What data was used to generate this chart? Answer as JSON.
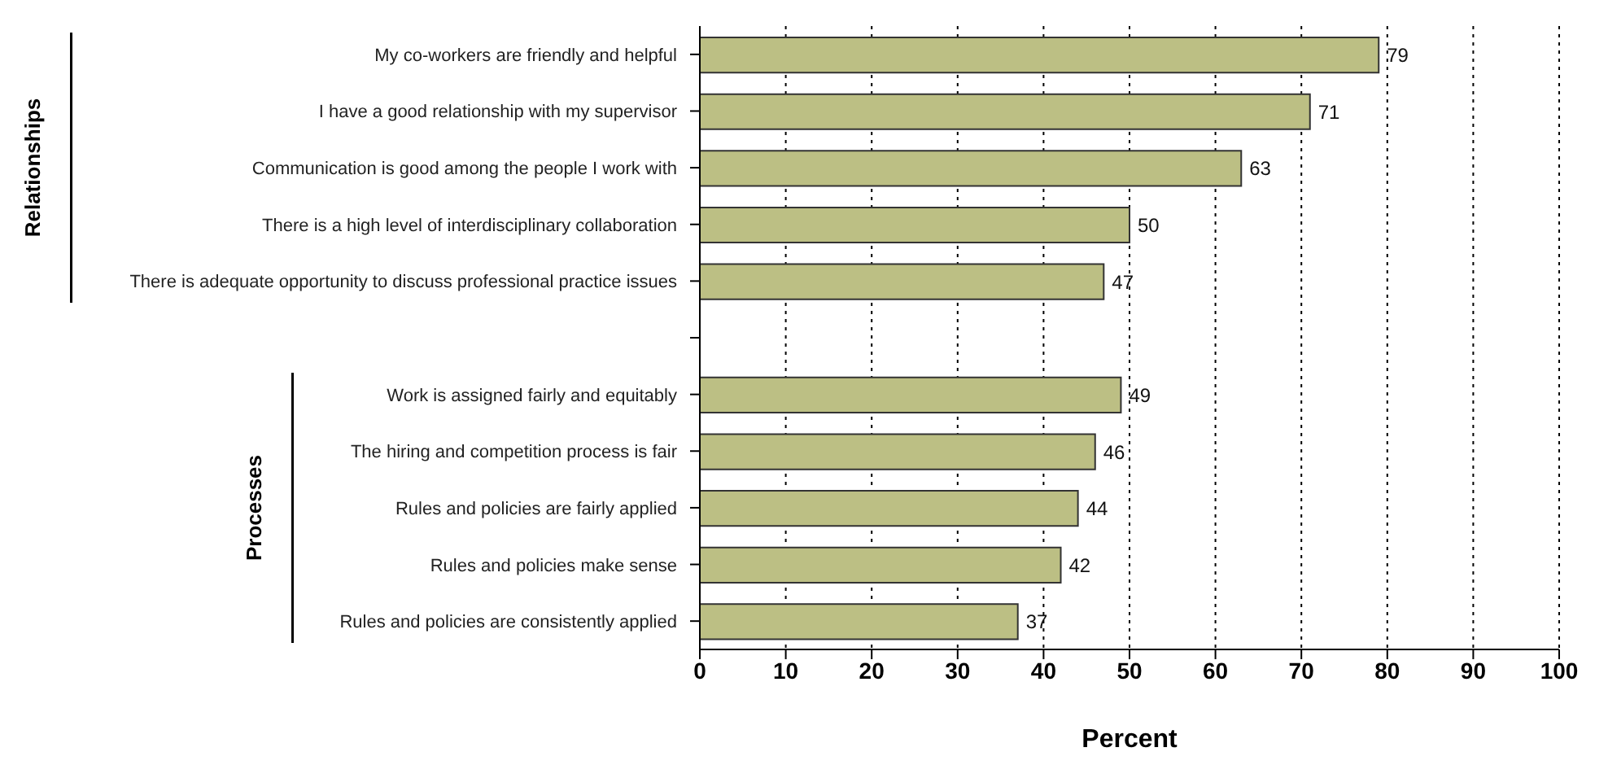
{
  "chart_data": {
    "type": "bar",
    "orientation": "horizontal",
    "xlabel": "Percent",
    "categories": [
      "My co-workers are friendly and helpful",
      "I have a good relationship with my supervisor",
      "Communication is good among the people I work with",
      "There is a high level of interdisciplinary collaboration",
      "There is adequate opportunity to discuss professional practice issues",
      null,
      "Work is assigned fairly and equitably",
      "The hiring and competition process is fair",
      "Rules and policies are fairly applied",
      "Rules and policies make sense",
      "Rules and policies are consistently applied"
    ],
    "values": [
      79,
      71,
      63,
      50,
      47,
      null,
      49,
      46,
      44,
      42,
      37
    ],
    "color": "#bcbf84",
    "xlim": [
      0,
      100
    ],
    "xticks": [
      0,
      10,
      20,
      30,
      40,
      50,
      60,
      70,
      80,
      90,
      100
    ],
    "grid": "x",
    "line_style": "dotted",
    "data_labels": true,
    "legend": false,
    "annotations": [
      "Relationships",
      "Processes"
    ]
  }
}
